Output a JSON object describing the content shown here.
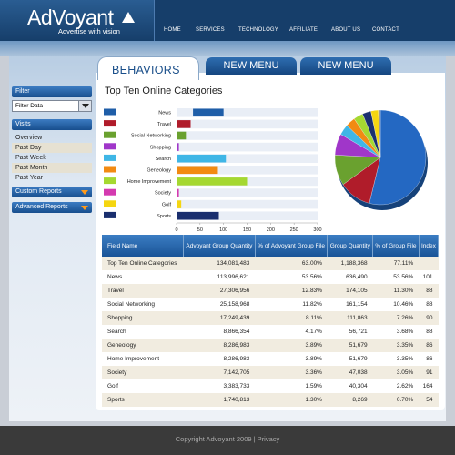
{
  "header": {
    "logo": "AdVoyant",
    "tagline": "Advertise with vision",
    "nav": [
      {
        "label": "HOME"
      },
      {
        "label": "SERVICES"
      },
      {
        "label": "TECHNOLOGY"
      },
      {
        "label": "AFFILIATE"
      },
      {
        "label": "ABOUT US"
      },
      {
        "label": "CONTACT"
      }
    ]
  },
  "tabs": {
    "active": "BEHAVIORS",
    "others": [
      {
        "label": "NEW MENU"
      },
      {
        "label": "NEW MENU"
      }
    ]
  },
  "sidebar": {
    "filter_header": "Filter",
    "filter_value": "Filter Data",
    "visits_header": "Visits",
    "visits": [
      {
        "label": "Overview"
      },
      {
        "label": "Past Day"
      },
      {
        "label": "Past Week"
      },
      {
        "label": "Past Month"
      },
      {
        "label": "Past Year"
      }
    ],
    "custom_reports": "Custom Reports",
    "advanced_reports": "Advanced Reports"
  },
  "panel": {
    "title": "Top Ten Online Categories"
  },
  "chart_data": {
    "type": "bar",
    "orientation": "horizontal",
    "categories": [
      "News",
      "Travel",
      "Social Networking",
      "Shopping",
      "Search",
      "Geneology",
      "Home Improvement",
      "Society",
      "Golf",
      "Sports"
    ],
    "values": [
      65,
      30,
      20,
      5,
      105,
      88,
      150,
      5,
      10,
      90
    ],
    "start": [
      35,
      0,
      0,
      0,
      0,
      0,
      0,
      0,
      0,
      0
    ],
    "colors": [
      "#1f5ea8",
      "#b01c2a",
      "#6aa12f",
      "#a036c9",
      "#3fb6e6",
      "#f28a12",
      "#a5d831",
      "#d43ab0",
      "#f5d611",
      "#1a2f6e"
    ],
    "xticks": [
      "0",
      "50",
      "100",
      "150",
      "200",
      "250",
      "300"
    ],
    "xlim": [
      0,
      300
    ],
    "pie": {
      "values": [
        53.56,
        11.3,
        10.46,
        7.26,
        3.68,
        3.35,
        3.35,
        3.05,
        2.62,
        0.7
      ],
      "colors": [
        "#2468c2",
        "#b01c2a",
        "#6aa12f",
        "#a036c9",
        "#3fb6e6",
        "#f28a12",
        "#a5d831",
        "#1a2f6e",
        "#f5d611",
        "#888888"
      ]
    }
  },
  "table": {
    "headers": [
      "Field Name",
      "Advoyant Group Quantity",
      "% of Advoyant Group File",
      "Group Quantity",
      "% of Group File",
      "Index"
    ],
    "rows": [
      [
        "Top Ten Online Categories",
        "134,081,483",
        "63.00%",
        "1,188,368",
        "77.11%",
        ""
      ],
      [
        "News",
        "113,996,621",
        "53.56%",
        "636,490",
        "53.56%",
        "101"
      ],
      [
        "Travel",
        "27,306,956",
        "12.83%",
        "174,105",
        "11.30%",
        "88"
      ],
      [
        "Social Networking",
        "25,158,968",
        "11.82%",
        "161,154",
        "10.46%",
        "88"
      ],
      [
        "Shopping",
        "17,249,439",
        "8.11%",
        "111,863",
        "7.26%",
        "90"
      ],
      [
        "Search",
        "8,866,354",
        "4.17%",
        "56,721",
        "3.68%",
        "88"
      ],
      [
        "Geneology",
        "8,286,983",
        "3.89%",
        "51,679",
        "3.35%",
        "86"
      ],
      [
        "Home Improvement",
        "8,286,983",
        "3.89%",
        "51,679",
        "3.35%",
        "86"
      ],
      [
        "Society",
        "7,142,705",
        "3.36%",
        "47,038",
        "3.05%",
        "91"
      ],
      [
        "Golf",
        "3,383,733",
        "1.59%",
        "40,304",
        "2.62%",
        "164"
      ],
      [
        "Sports",
        "1,740,813",
        "1.30%",
        "8,269",
        "0.70%",
        "54"
      ]
    ]
  },
  "footer": {
    "text": "Copyright Advoyant 2009 | Privacy"
  }
}
